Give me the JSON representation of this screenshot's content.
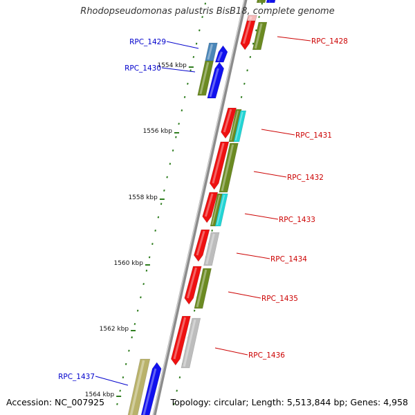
{
  "title": "Rhodopseudomonas palustris BisB18, complete genome",
  "footer": {
    "accession": "Accession: NC_007925",
    "info": "Topology: circular; Length: 5,513,844 bp; Genes: 4,958"
  },
  "colors": {
    "backbone": "#8c8c8c",
    "tick": "#2e7d1e",
    "label_plus": "#cc0000",
    "label_minus": "#0000cc",
    "gene_red": "#ee1111",
    "gene_blue": "#1111ee",
    "gene_olive": "#6b8a22",
    "gene_cyan": "#22d5d5",
    "gene_gray": "#bdbdbd",
    "gene_tan": "#b9b26a",
    "gene_steel": "#4a86b8",
    "gene_pink": "#f6b8b8"
  },
  "scale_labels": [
    {
      "text": "1554 kbp",
      "kbp": 1554
    },
    {
      "text": "1556 kbp",
      "kbp": 1556
    },
    {
      "text": "1558 kbp",
      "kbp": 1558
    },
    {
      "text": "1560 kbp",
      "kbp": 1560
    },
    {
      "text": "1562 kbp",
      "kbp": 1562
    },
    {
      "text": "1564 kbp",
      "kbp": 1564
    }
  ],
  "gene_labels": [
    {
      "text": "RPC_1428",
      "strand": "plus"
    },
    {
      "text": "RPC_1429",
      "strand": "minus"
    },
    {
      "text": "RPC_1430",
      "strand": "minus"
    },
    {
      "text": "RPC_1431",
      "strand": "plus"
    },
    {
      "text": "RPC_1432",
      "strand": "plus"
    },
    {
      "text": "RPC_1433",
      "strand": "plus"
    },
    {
      "text": "RPC_1434",
      "strand": "plus"
    },
    {
      "text": "RPC_1435",
      "strand": "plus"
    },
    {
      "text": "RPC_1436",
      "strand": "plus"
    },
    {
      "text": "RPC_1437",
      "strand": "minus"
    }
  ]
}
